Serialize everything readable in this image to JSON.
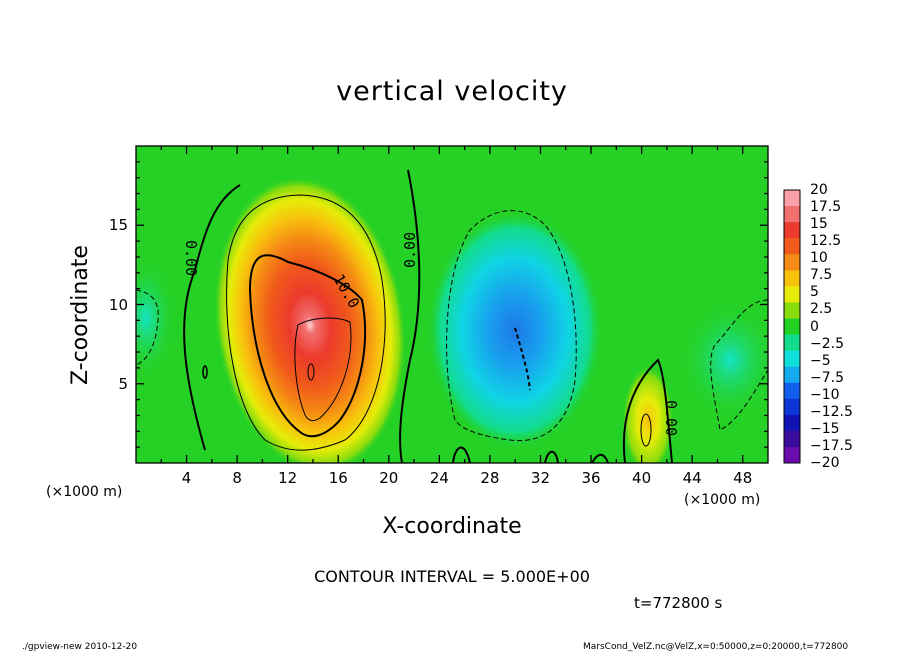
{
  "chart_data": {
    "type": "heatmap",
    "title": "vertical velocity",
    "xlabel": "X-coordinate",
    "ylabel": "Z-coordinate",
    "x_unit": "(×1000 m)",
    "y_unit": "(×1000 m)",
    "xlim": [
      0,
      50
    ],
    "ylim": [
      0,
      20
    ],
    "x_ticks": [
      "4",
      "8",
      "12",
      "16",
      "20",
      "24",
      "28",
      "32",
      "36",
      "40",
      "44",
      "48"
    ],
    "y_ticks": [
      "5",
      "10",
      "15"
    ],
    "colorbar": {
      "labels": [
        "20",
        "17.5",
        "15",
        "12.5",
        "10",
        "7.5",
        "5",
        "2.5",
        "0",
        "−2.5",
        "−5",
        "−7.5",
        "−10",
        "−12.5",
        "−15",
        "−17.5",
        "−20"
      ],
      "range": [
        -20,
        20
      ],
      "colors": [
        "#f9a0a8",
        "#f27070",
        "#ec3a2c",
        "#f05a1a",
        "#f58a14",
        "#f8c20c",
        "#e6ec08",
        "#8adc0e",
        "#22d222",
        "#12dc8c",
        "#10e0dc",
        "#14aaf0",
        "#1060ec",
        "#0c36d8",
        "#1012b4",
        "#3a0c9c",
        "#680cac"
      ]
    },
    "features": [
      {
        "kind": "updraft",
        "x_center": 14,
        "z_center": 7,
        "peak_value": 20
      },
      {
        "kind": "downdraft",
        "x_center": 30,
        "z_center": 7,
        "min_value": -10
      },
      {
        "kind": "updraft",
        "x_center": 40.5,
        "z_center": 3,
        "peak_value": 5
      }
    ],
    "contour_labels": [
      "0.00",
      "0.00",
      "10.0",
      "0.00"
    ],
    "contour_interval": "CONTOUR INTERVAL = 5.000E+00",
    "time": "t=772800 s",
    "footer_left": "./gpview-new   2010-12-20",
    "footer_right": "MarsCond_VelZ.nc@VelZ,x=0:50000,z=0:20000,t=772800"
  }
}
